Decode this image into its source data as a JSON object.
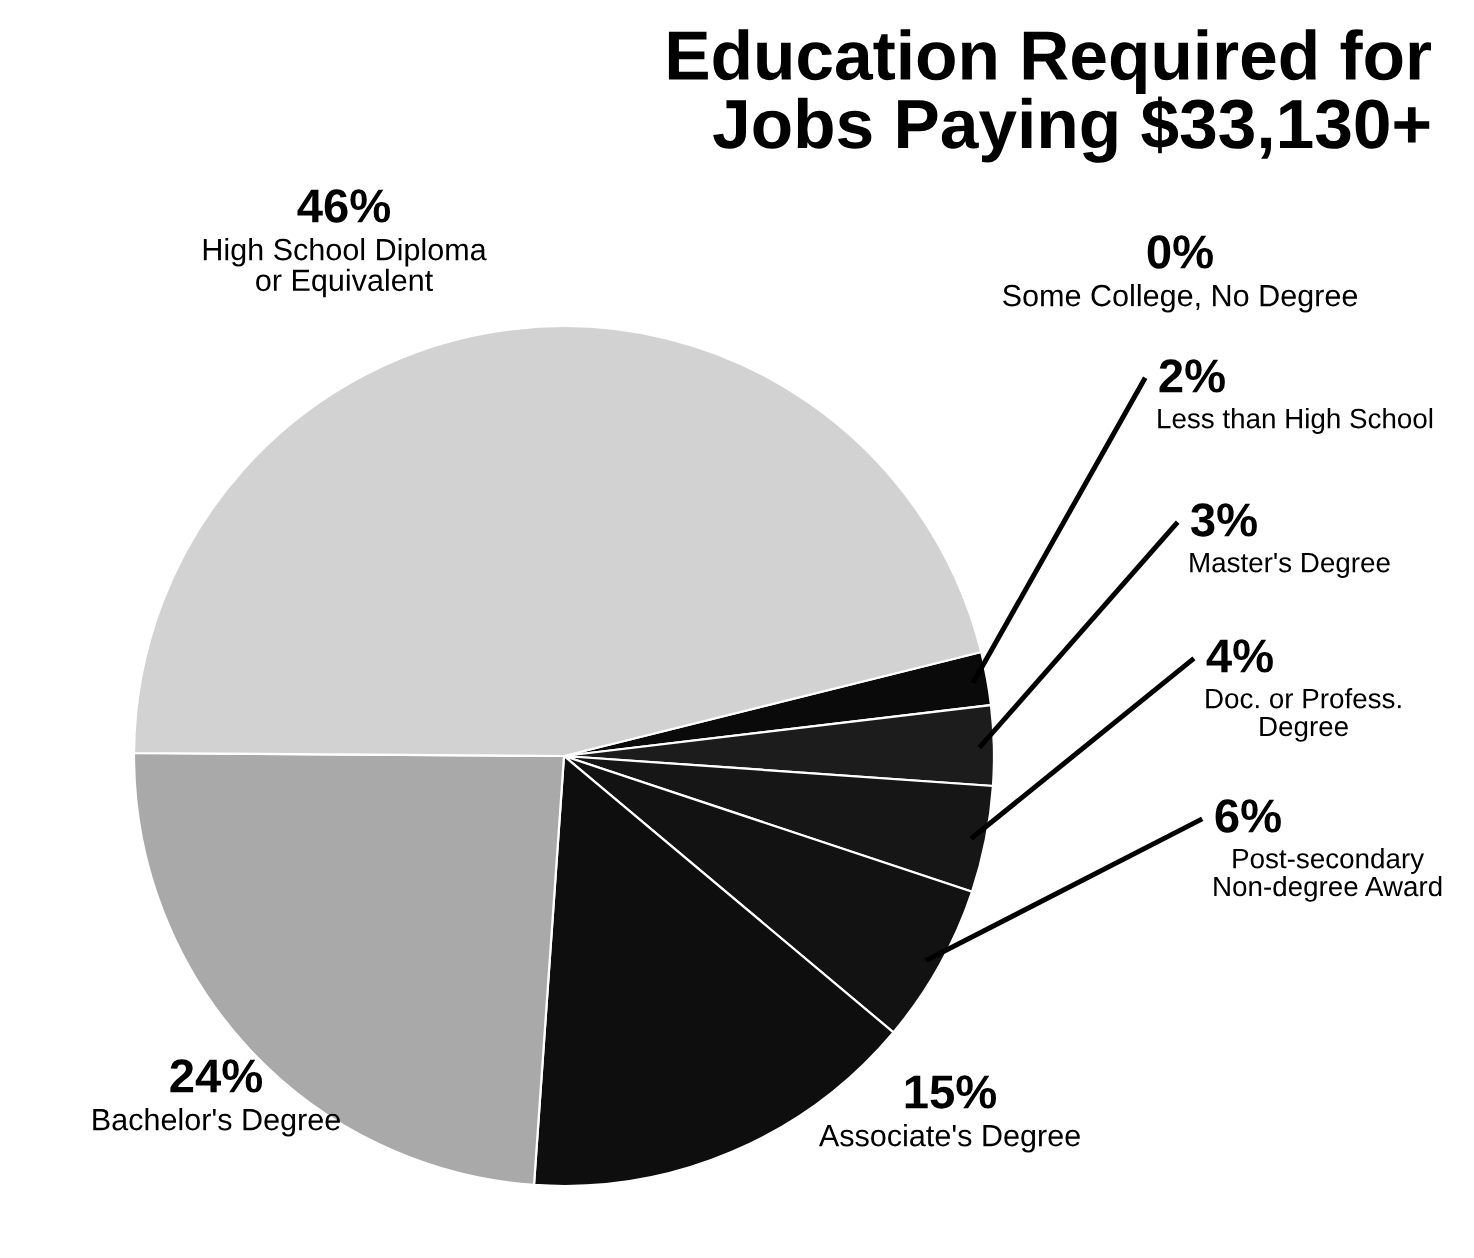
{
  "chart_data": {
    "type": "pie",
    "title": "Education Required for Jobs Paying $33,130+",
    "categories": [
      "Some College, No Degree",
      "Less than High School",
      "Master's Degree",
      "Doc. or Profess. Degree",
      "Post-secondary Non-degree Award",
      "Associate's Degree",
      "Bachelor's Degree",
      "High School Diploma or Equivalent"
    ],
    "values": [
      0,
      2,
      3,
      4,
      6,
      15,
      24,
      46
    ],
    "value_labels": [
      "0%",
      "2%",
      "3%",
      "4%",
      "6%",
      "15%",
      "24%",
      "46%"
    ],
    "colors": [
      "#bdbdbd",
      "#0a0a0a",
      "#1c1c1c",
      "#161616",
      "#121212",
      "#0e0e0e",
      "#a9a9a9",
      "#d2d2d2"
    ],
    "legend": false
  }
}
